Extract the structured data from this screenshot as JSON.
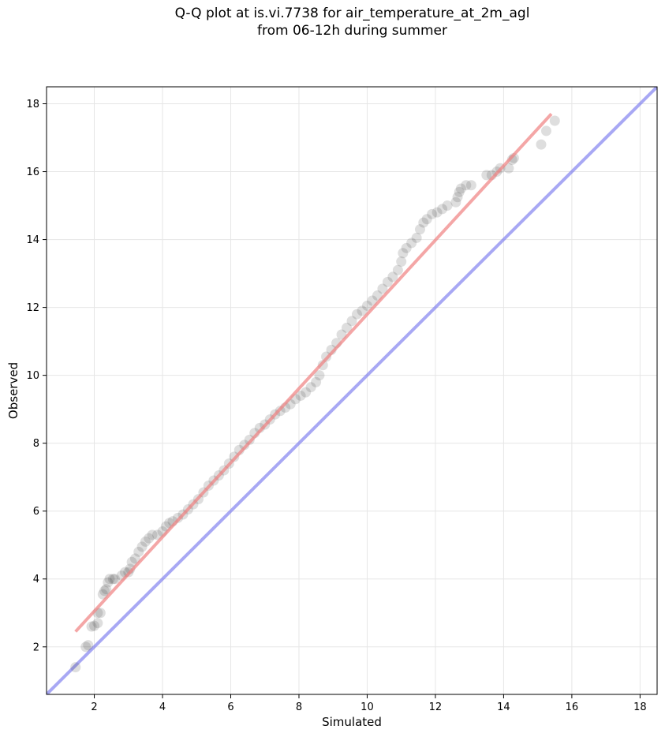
{
  "chart_data": {
    "type": "scatter",
    "title": "Q-Q plot at is.vi.7738 for air_temperature_at_2m_agl\nfrom 06-12h during summer",
    "xlabel": "Simulated",
    "ylabel": "Observed",
    "xlim": [
      0.6,
      18.5
    ],
    "ylim": [
      0.6,
      18.5
    ],
    "xticks": [
      2,
      4,
      6,
      8,
      10,
      12,
      14,
      16,
      18
    ],
    "yticks": [
      2,
      4,
      6,
      8,
      10,
      12,
      14,
      16,
      18
    ],
    "grid": true,
    "colors": {
      "points": "#333333",
      "fit_line": "#f08080",
      "identity_line": "#7a7aee"
    },
    "series": [
      {
        "values": [
          [
            1.45,
            1.4
          ],
          [
            1.75,
            2.0
          ],
          [
            1.82,
            2.05
          ],
          [
            1.92,
            2.6
          ],
          [
            2.0,
            2.62
          ],
          [
            2.1,
            2.7
          ],
          [
            2.1,
            3.0
          ],
          [
            2.18,
            3.0
          ],
          [
            2.25,
            3.55
          ],
          [
            2.3,
            3.65
          ],
          [
            2.35,
            3.7
          ],
          [
            2.4,
            3.9
          ],
          [
            2.45,
            4.0
          ],
          [
            2.55,
            4.0
          ],
          [
            2.6,
            4.0
          ],
          [
            2.8,
            4.1
          ],
          [
            2.9,
            4.2
          ],
          [
            3.0,
            4.2
          ],
          [
            3.05,
            4.3
          ],
          [
            3.1,
            4.5
          ],
          [
            3.2,
            4.6
          ],
          [
            3.3,
            4.8
          ],
          [
            3.4,
            4.95
          ],
          [
            3.5,
            5.1
          ],
          [
            3.6,
            5.2
          ],
          [
            3.7,
            5.3
          ],
          [
            3.85,
            5.3
          ],
          [
            4.0,
            5.4
          ],
          [
            4.1,
            5.55
          ],
          [
            4.2,
            5.65
          ],
          [
            4.3,
            5.7
          ],
          [
            4.45,
            5.8
          ],
          [
            4.6,
            5.9
          ],
          [
            4.75,
            6.05
          ],
          [
            4.9,
            6.2
          ],
          [
            5.05,
            6.35
          ],
          [
            5.2,
            6.55
          ],
          [
            5.35,
            6.75
          ],
          [
            5.5,
            6.9
          ],
          [
            5.65,
            7.05
          ],
          [
            5.8,
            7.2
          ],
          [
            5.95,
            7.4
          ],
          [
            6.1,
            7.6
          ],
          [
            6.25,
            7.8
          ],
          [
            6.4,
            7.95
          ],
          [
            6.55,
            8.1
          ],
          [
            6.7,
            8.3
          ],
          [
            6.85,
            8.45
          ],
          [
            7.0,
            8.55
          ],
          [
            7.15,
            8.7
          ],
          [
            7.3,
            8.85
          ],
          [
            7.45,
            8.95
          ],
          [
            7.6,
            9.05
          ],
          [
            7.75,
            9.15
          ],
          [
            7.9,
            9.3
          ],
          [
            8.05,
            9.4
          ],
          [
            8.2,
            9.5
          ],
          [
            8.35,
            9.65
          ],
          [
            8.5,
            9.8
          ],
          [
            8.6,
            10.0
          ],
          [
            8.7,
            10.3
          ],
          [
            8.8,
            10.55
          ],
          [
            8.95,
            10.75
          ],
          [
            9.1,
            10.95
          ],
          [
            9.25,
            11.2
          ],
          [
            9.4,
            11.4
          ],
          [
            9.55,
            11.6
          ],
          [
            9.7,
            11.8
          ],
          [
            9.85,
            11.9
          ],
          [
            10.0,
            12.05
          ],
          [
            10.15,
            12.2
          ],
          [
            10.3,
            12.35
          ],
          [
            10.45,
            12.55
          ],
          [
            10.6,
            12.75
          ],
          [
            10.75,
            12.9
          ],
          [
            10.9,
            13.1
          ],
          [
            11.0,
            13.35
          ],
          [
            11.05,
            13.6
          ],
          [
            11.15,
            13.75
          ],
          [
            11.3,
            13.9
          ],
          [
            11.45,
            14.05
          ],
          [
            11.55,
            14.3
          ],
          [
            11.65,
            14.5
          ],
          [
            11.75,
            14.6
          ],
          [
            11.9,
            14.75
          ],
          [
            12.05,
            14.8
          ],
          [
            12.2,
            14.9
          ],
          [
            12.35,
            15.0
          ],
          [
            12.6,
            15.1
          ],
          [
            12.65,
            15.25
          ],
          [
            12.7,
            15.4
          ],
          [
            12.75,
            15.5
          ],
          [
            12.9,
            15.6
          ],
          [
            13.05,
            15.6
          ],
          [
            13.5,
            15.9
          ],
          [
            13.65,
            15.9
          ],
          [
            13.8,
            16.0
          ],
          [
            13.9,
            16.1
          ],
          [
            14.15,
            16.1
          ],
          [
            14.25,
            16.35
          ],
          [
            14.3,
            16.4
          ],
          [
            15.1,
            16.8
          ],
          [
            15.25,
            17.2
          ],
          [
            15.5,
            17.5
          ]
        ]
      }
    ],
    "fit_line": [
      [
        1.45,
        2.45
      ],
      [
        15.4,
        17.7
      ]
    ],
    "identity_line": [
      [
        0.6,
        0.6
      ],
      [
        18.5,
        18.5
      ]
    ]
  }
}
